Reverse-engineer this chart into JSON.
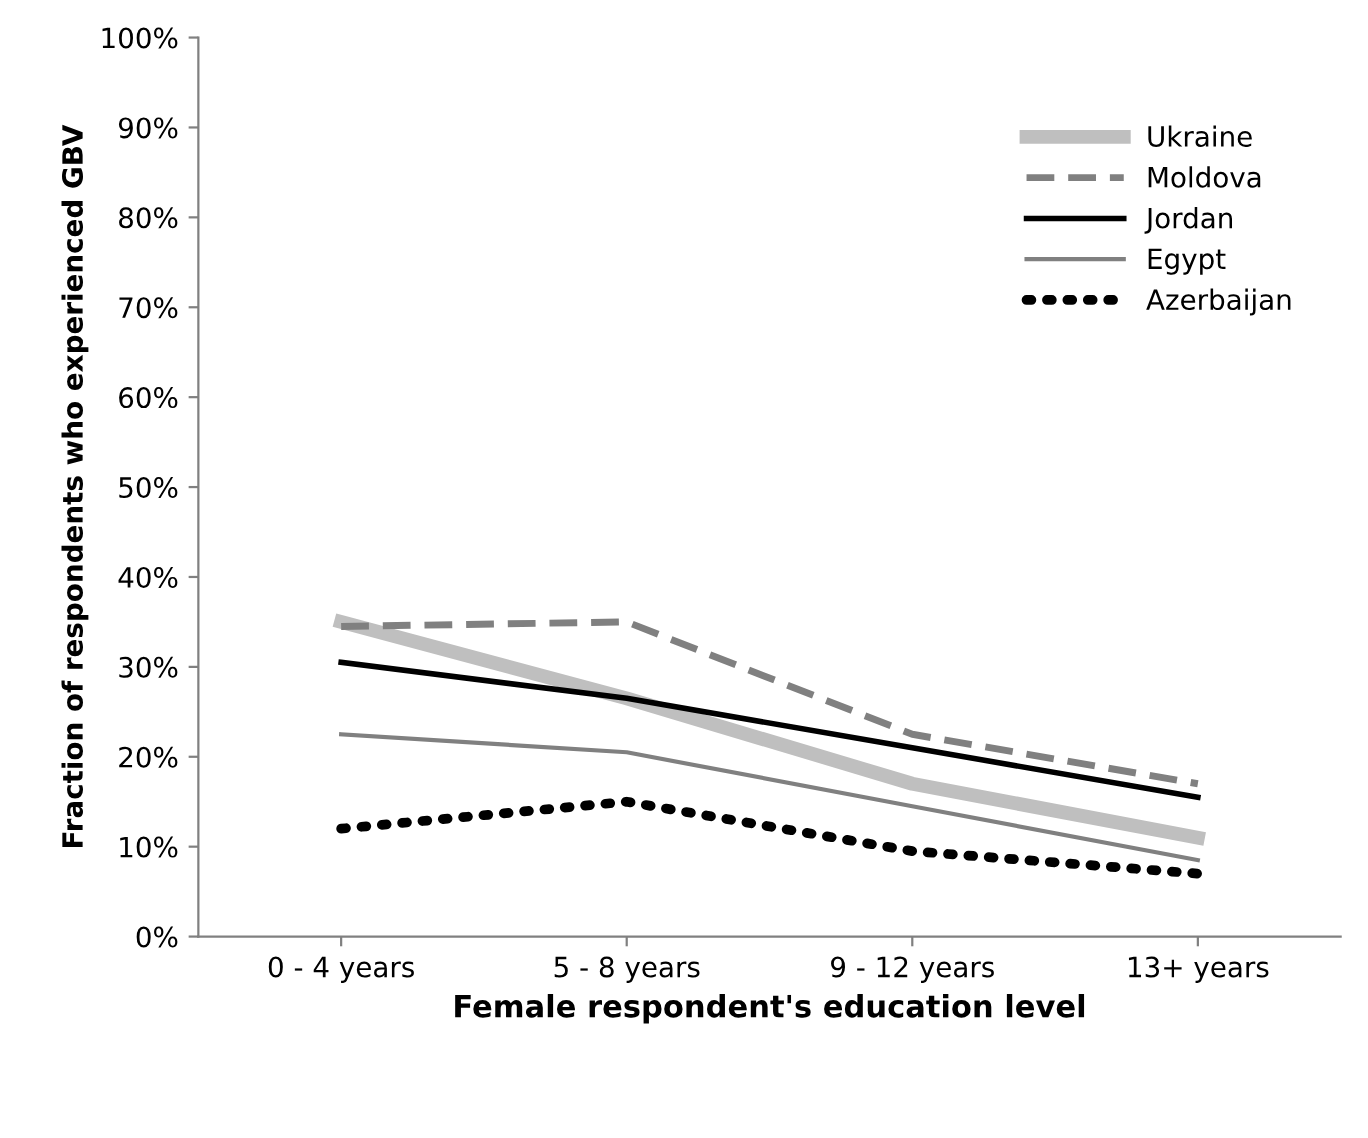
{
  "chart_data": {
    "type": "line",
    "xlabel": "Female respondent's education level",
    "ylabel": "Fraction of respondents who experienced GBV",
    "categories": [
      "0 - 4 years",
      "5 - 8 years",
      "9 - 12 years",
      "13+ years"
    ],
    "series": [
      {
        "name": "Ukraine",
        "color": "#bfbfbf",
        "values": [
          35,
          26.5,
          17,
          11
        ],
        "line_style": "solid"
      },
      {
        "name": "Moldova",
        "color": "#808080",
        "values": [
          34.5,
          35,
          22.5,
          17
        ],
        "line_style": "dashed"
      },
      {
        "name": "Jordan",
        "color": "#000000",
        "values": [
          30.5,
          26.5,
          21,
          15.5
        ],
        "line_style": "solid"
      },
      {
        "name": "Egypt",
        "color": "#808080",
        "values": [
          22.5,
          20.5,
          14.5,
          8.5
        ],
        "line_style": "solid"
      },
      {
        "name": "Azerbaijan",
        "color": "#000000",
        "values": [
          12,
          15,
          9.5,
          7
        ],
        "line_style": "dotted"
      }
    ],
    "ylim": [
      0,
      100
    ],
    "yticks": [
      {
        "value": 0,
        "label": "0%"
      },
      {
        "value": 10,
        "label": "10%"
      },
      {
        "value": 20,
        "label": "20%"
      },
      {
        "value": 30,
        "label": "30%"
      },
      {
        "value": 40,
        "label": "40%"
      },
      {
        "value": 50,
        "label": "50%"
      },
      {
        "value": 60,
        "label": "60%"
      },
      {
        "value": 70,
        "label": "70%"
      },
      {
        "value": 80,
        "label": "80%"
      },
      {
        "value": 90,
        "label": "90%"
      },
      {
        "value": 100,
        "label": "100%"
      }
    ],
    "grid": false,
    "legend": "top right",
    "marker": "none"
  }
}
